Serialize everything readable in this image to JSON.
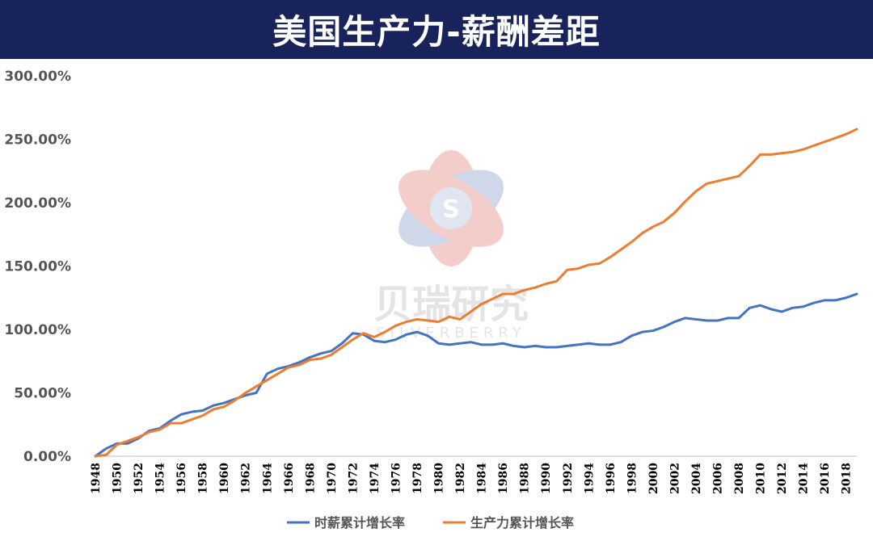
{
  "banner": {
    "title": "美国生产力-薪酬差距"
  },
  "watermark": {
    "name": "贝瑞研究",
    "sub": "SILVERBERRY",
    "logo_letter": "S"
  },
  "colors": {
    "banner": "#17235a",
    "wage": "#4472c4",
    "productivity": "#ed7d31"
  },
  "chart_data": {
    "type": "line",
    "title": "美国生产力-薪酬差距",
    "x": [
      1948,
      1949,
      1950,
      1951,
      1952,
      1953,
      1954,
      1955,
      1956,
      1957,
      1958,
      1959,
      1960,
      1961,
      1962,
      1963,
      1964,
      1965,
      1966,
      1967,
      1968,
      1969,
      1970,
      1971,
      1972,
      1973,
      1974,
      1975,
      1976,
      1977,
      1978,
      1979,
      1980,
      1981,
      1982,
      1983,
      1984,
      1985,
      1986,
      1987,
      1988,
      1989,
      1990,
      1991,
      1992,
      1993,
      1994,
      1995,
      1996,
      1997,
      1998,
      1999,
      2000,
      2001,
      2002,
      2003,
      2004,
      2005,
      2006,
      2007,
      2008,
      2009,
      2010,
      2011,
      2012,
      2013,
      2014,
      2015,
      2016,
      2017,
      2018,
      2019
    ],
    "x_tick_labels": [
      "1948",
      "1950",
      "1952",
      "1954",
      "1956",
      "1958",
      "1960",
      "1962",
      "1964",
      "1966",
      "1968",
      "1970",
      "1972",
      "1974",
      "1976",
      "1978",
      "1980",
      "1982",
      "1984",
      "1986",
      "1988",
      "1990",
      "1992",
      "1994",
      "1996",
      "1998",
      "2000",
      "2002",
      "2004",
      "2006",
      "2008",
      "2010",
      "2012",
      "2014",
      "2016",
      "2018"
    ],
    "y_tick_labels": [
      "0.00%",
      "50.00%",
      "100.00%",
      "150.00%",
      "200.00%",
      "250.00%",
      "300.00%"
    ],
    "ylim": [
      0,
      300
    ],
    "ylabel_unit": "%",
    "grid": false,
    "legend_position": "bottom",
    "series": [
      {
        "name": "时薪累计增长率",
        "color": "#4472c4",
        "values": [
          0,
          6,
          10,
          10,
          14,
          20,
          22,
          28,
          33,
          35,
          36,
          40,
          42,
          45,
          48,
          50,
          65,
          69,
          71,
          74,
          78,
          81,
          83,
          89,
          97,
          96,
          91,
          90,
          92,
          96,
          98,
          95,
          89,
          88,
          89,
          90,
          88,
          88,
          89,
          87,
          86,
          87,
          86,
          86,
          87,
          88,
          89,
          88,
          88,
          90,
          95,
          98,
          99,
          102,
          106,
          109,
          108,
          107,
          107,
          109,
          109,
          117,
          119,
          116,
          114,
          117,
          118,
          121,
          123,
          123,
          125,
          128
        ]
      },
      {
        "name": "生产力累计增长率",
        "color": "#ed7d31",
        "values": [
          0,
          1,
          9,
          12,
          15,
          19,
          21,
          26,
          26,
          29,
          32,
          37,
          39,
          44,
          50,
          55,
          60,
          65,
          70,
          72,
          76,
          77,
          80,
          86,
          92,
          97,
          94,
          98,
          103,
          106,
          108,
          107,
          106,
          110,
          108,
          114,
          120,
          124,
          128,
          128,
          131,
          133,
          136,
          138,
          147,
          148,
          151,
          152,
          157,
          163,
          169,
          176,
          181,
          185,
          192,
          201,
          209,
          215,
          217,
          219,
          221,
          229,
          238,
          238,
          239,
          240,
          242,
          245,
          248,
          251,
          254,
          258
        ]
      }
    ]
  }
}
